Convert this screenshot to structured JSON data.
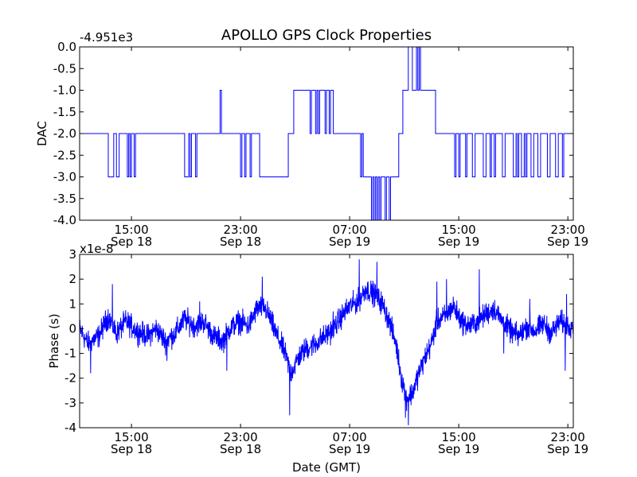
{
  "chart_data": {
    "title": "APOLLO GPS Clock Properties",
    "x_ticks": [
      {
        "time": "15:00",
        "date": "Sep 18",
        "hours": 15
      },
      {
        "time": "23:00",
        "date": "Sep 18",
        "hours": 23
      },
      {
        "time": "07:00",
        "date": "Sep 19",
        "hours": 31
      },
      {
        "time": "15:00",
        "date": "Sep 19",
        "hours": 39
      },
      {
        "time": "23:00",
        "date": "Sep 19",
        "hours": 47
      }
    ],
    "x_range_hours": [
      11.2,
      47.4
    ],
    "xlabel": "Date (GMT)",
    "panels": [
      {
        "type": "line",
        "ylabel": "DAC",
        "offset_label": "-4.951e3",
        "ylim": [
          -4.0,
          0.0
        ],
        "yticks": [
          "-4.0",
          "-3.5",
          "-3.0",
          "-2.5",
          "-2.0",
          "-1.5",
          "-1.0",
          "-0.5",
          "0.0"
        ],
        "ytick_values": [
          -4.0,
          -3.5,
          -3.0,
          -2.5,
          -2.0,
          -1.5,
          -1.0,
          -0.5,
          0.0
        ],
        "color": "#0000ff",
        "steps": [
          [
            11.2,
            -2
          ],
          [
            13.3,
            -3
          ],
          [
            13.7,
            -2
          ],
          [
            13.9,
            -3
          ],
          [
            14.1,
            -2
          ],
          [
            14.3,
            -2
          ],
          [
            14.7,
            -3
          ],
          [
            14.8,
            -2
          ],
          [
            14.9,
            -3
          ],
          [
            15.0,
            -2
          ],
          [
            15.2,
            -3
          ],
          [
            15.3,
            -2
          ],
          [
            18.9,
            -3
          ],
          [
            19.2,
            -2
          ],
          [
            19.3,
            -3
          ],
          [
            19.4,
            -2
          ],
          [
            19.6,
            -2
          ],
          [
            19.7,
            -3
          ],
          [
            19.8,
            -2
          ],
          [
            21.5,
            -1
          ],
          [
            21.6,
            -2
          ],
          [
            23.0,
            -3
          ],
          [
            23.1,
            -2
          ],
          [
            23.3,
            -3
          ],
          [
            23.4,
            -2
          ],
          [
            23.7,
            -3
          ],
          [
            23.8,
            -2
          ],
          [
            24.4,
            -3
          ],
          [
            26.5,
            -2
          ],
          [
            26.9,
            -1
          ],
          [
            27.9,
            -1
          ],
          [
            28.1,
            -2
          ],
          [
            28.2,
            -1
          ],
          [
            28.4,
            -1
          ],
          [
            28.5,
            -2
          ],
          [
            28.6,
            -1
          ],
          [
            28.7,
            -2
          ],
          [
            28.8,
            -1
          ],
          [
            29.2,
            -2
          ],
          [
            29.3,
            -1
          ],
          [
            29.5,
            -2
          ],
          [
            29.6,
            -1
          ],
          [
            29.8,
            -2
          ],
          [
            31.8,
            -3
          ],
          [
            31.9,
            -2
          ],
          [
            32.0,
            -3
          ],
          [
            32.6,
            -4
          ],
          [
            32.7,
            -3
          ],
          [
            32.8,
            -4
          ],
          [
            32.9,
            -3
          ],
          [
            33.0,
            -4
          ],
          [
            33.1,
            -3
          ],
          [
            33.2,
            -4
          ],
          [
            33.3,
            -3
          ],
          [
            33.6,
            -4
          ],
          [
            33.7,
            -3
          ],
          [
            33.9,
            -4
          ],
          [
            34.0,
            -3
          ],
          [
            34.6,
            -2
          ],
          [
            34.9,
            -1
          ],
          [
            35.3,
            0
          ],
          [
            35.6,
            -1
          ],
          [
            35.9,
            0
          ],
          [
            36.0,
            -1
          ],
          [
            36.1,
            0
          ],
          [
            36.2,
            -1
          ],
          [
            37.3,
            -2
          ],
          [
            38.7,
            -3
          ],
          [
            38.8,
            -2
          ],
          [
            39.0,
            -3
          ],
          [
            39.1,
            -2
          ],
          [
            39.5,
            -3
          ],
          [
            39.6,
            -2
          ],
          [
            40.0,
            -3
          ],
          [
            40.2,
            -2
          ],
          [
            40.8,
            -3
          ],
          [
            41.0,
            -2
          ],
          [
            41.3,
            -3
          ],
          [
            41.4,
            -2
          ],
          [
            41.6,
            -3
          ],
          [
            41.7,
            -2
          ],
          [
            42.2,
            -3
          ],
          [
            42.4,
            -2
          ],
          [
            43.0,
            -3
          ],
          [
            43.2,
            -2
          ],
          [
            43.3,
            -3
          ],
          [
            43.4,
            -2
          ],
          [
            43.6,
            -3
          ],
          [
            43.8,
            -2
          ],
          [
            43.9,
            -3
          ],
          [
            44.0,
            -2
          ],
          [
            44.3,
            -3
          ],
          [
            44.5,
            -2
          ],
          [
            44.8,
            -3
          ],
          [
            45.0,
            -2
          ],
          [
            45.5,
            -3
          ],
          [
            45.7,
            -2
          ],
          [
            46.1,
            -3
          ],
          [
            46.3,
            -2
          ],
          [
            46.6,
            -3
          ],
          [
            46.7,
            -2
          ],
          [
            47.4,
            -2
          ]
        ]
      },
      {
        "type": "line",
        "ylabel": "Phase (s)",
        "offset_label": "x1e-8",
        "ylim": [
          -4,
          3
        ],
        "yticks": [
          "-4",
          "-3",
          "-2",
          "-1",
          "0",
          "1",
          "2",
          "3"
        ],
        "ytick_values": [
          -4,
          -3,
          -2,
          -1,
          0,
          1,
          2,
          3
        ],
        "color": "#0000ff",
        "anchors": [
          [
            11.2,
            0.0
          ],
          [
            11.8,
            -0.6
          ],
          [
            12.6,
            -0.3
          ],
          [
            13.3,
            0.5
          ],
          [
            13.9,
            -0.2
          ],
          [
            14.6,
            0.3
          ],
          [
            15.4,
            -0.1
          ],
          [
            16.2,
            -0.3
          ],
          [
            16.8,
            0.0
          ],
          [
            17.5,
            -0.5
          ],
          [
            18.2,
            -0.2
          ],
          [
            18.9,
            0.4
          ],
          [
            19.6,
            0.1
          ],
          [
            20.3,
            0.3
          ],
          [
            21.0,
            -0.3
          ],
          [
            21.7,
            -0.5
          ],
          [
            22.2,
            0.0
          ],
          [
            22.9,
            0.3
          ],
          [
            23.6,
            0.1
          ],
          [
            24.2,
            0.8
          ],
          [
            24.7,
            0.9
          ],
          [
            25.1,
            0.5
          ],
          [
            25.6,
            -0.2
          ],
          [
            26.2,
            -0.9
          ],
          [
            26.7,
            -1.8
          ],
          [
            27.2,
            -1.2
          ],
          [
            27.8,
            -0.8
          ],
          [
            28.5,
            -0.6
          ],
          [
            29.2,
            -0.3
          ],
          [
            29.8,
            0.0
          ],
          [
            30.4,
            0.5
          ],
          [
            31.0,
            0.9
          ],
          [
            31.6,
            1.1
          ],
          [
            32.2,
            1.6
          ],
          [
            32.8,
            1.4
          ],
          [
            33.4,
            1.0
          ],
          [
            33.9,
            0.3
          ],
          [
            34.4,
            -0.6
          ],
          [
            34.8,
            -2.0
          ],
          [
            35.2,
            -2.8
          ],
          [
            35.6,
            -2.6
          ],
          [
            36.0,
            -1.9
          ],
          [
            36.5,
            -1.2
          ],
          [
            37.0,
            -0.6
          ],
          [
            37.4,
            0.3
          ],
          [
            38.0,
            0.5
          ],
          [
            38.6,
            0.9
          ],
          [
            39.2,
            0.3
          ],
          [
            39.8,
            0.1
          ],
          [
            40.4,
            0.3
          ],
          [
            41.0,
            0.6
          ],
          [
            41.6,
            0.8
          ],
          [
            42.2,
            0.3
          ],
          [
            42.8,
            -0.1
          ],
          [
            43.4,
            -0.3
          ],
          [
            44.0,
            0.1
          ],
          [
            44.6,
            -0.1
          ],
          [
            45.2,
            0.2
          ],
          [
            45.8,
            -0.2
          ],
          [
            46.4,
            0.3
          ],
          [
            47.0,
            0.1
          ],
          [
            47.4,
            0.2
          ]
        ],
        "noise_amplitude": 0.35,
        "spikes": [
          [
            13.6,
            1.8
          ],
          [
            12.0,
            -1.8
          ],
          [
            24.6,
            2.1
          ],
          [
            26.6,
            -3.5
          ],
          [
            31.7,
            2.8
          ],
          [
            33.0,
            2.7
          ],
          [
            35.3,
            -3.9
          ],
          [
            35.1,
            -3.6
          ],
          [
            37.4,
            1.9
          ],
          [
            38.1,
            2.0
          ],
          [
            40.5,
            2.4
          ],
          [
            42.3,
            -1.0
          ],
          [
            44.2,
            1.2
          ],
          [
            46.9,
            1.4
          ],
          [
            46.8,
            -1.7
          ],
          [
            20.0,
            1.1
          ],
          [
            17.6,
            -1.3
          ],
          [
            22.0,
            -1.7
          ],
          [
            28.0,
            -1.1
          ],
          [
            29.8,
            0.7
          ]
        ]
      }
    ]
  }
}
